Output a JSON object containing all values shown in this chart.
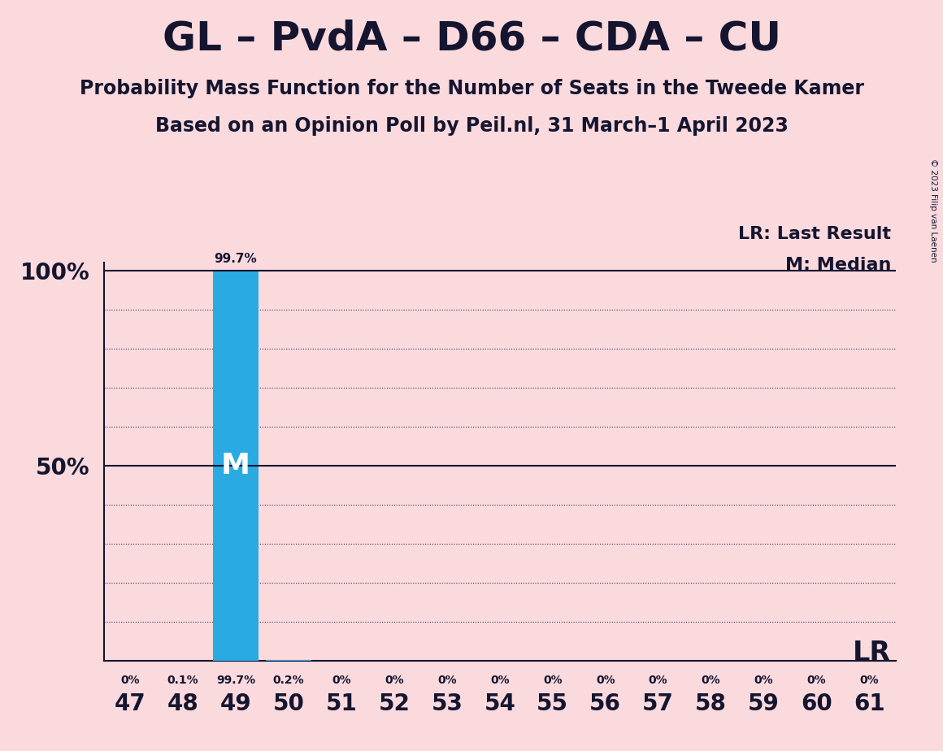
{
  "title": "GL – PvdA – D66 – CDA – CU",
  "subtitle1": "Probability Mass Function for the Number of Seats in the Tweede Kamer",
  "subtitle2": "Based on an Opinion Poll by Peil.nl, 31 March–1 April 2023",
  "copyright": "© 2023 Filip van Laenen",
  "seats": [
    47,
    48,
    49,
    50,
    51,
    52,
    53,
    54,
    55,
    56,
    57,
    58,
    59,
    60,
    61
  ],
  "probabilities": [
    0.0,
    0.1,
    99.7,
    0.2,
    0.0,
    0.0,
    0.0,
    0.0,
    0.0,
    0.0,
    0.0,
    0.0,
    0.0,
    0.0,
    0.0
  ],
  "bar_color": "#29ABE2",
  "median_seat": 49,
  "lr_value": 100,
  "background_color": "#FADADD",
  "text_color": "#151530",
  "legend_lr": "LR: Last Result",
  "legend_m": "M: Median",
  "ylim_min": 0,
  "ylim_max": 100,
  "xlim_min": 46.5,
  "xlim_max": 61.5,
  "grid_color": "#333355",
  "line_color": "#151530"
}
